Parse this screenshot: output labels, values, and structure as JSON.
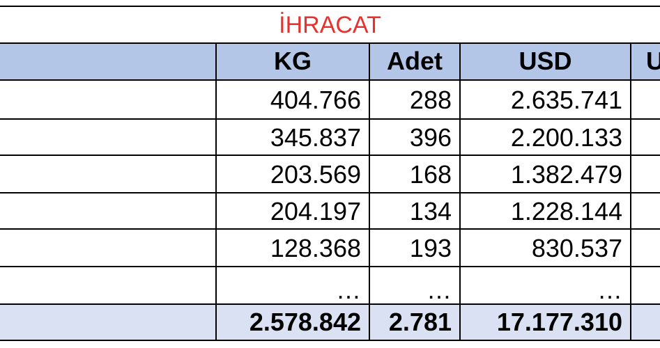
{
  "title": "İHRACAT",
  "headers": {
    "kg": "KG",
    "adet": "Adet",
    "usd": "USD",
    "partial": "U"
  },
  "rows": [
    {
      "kg": "404.766",
      "adet": "288",
      "usd": "2.635.741"
    },
    {
      "kg": "345.837",
      "adet": "396",
      "usd": "2.200.133"
    },
    {
      "kg": "203.569",
      "adet": "168",
      "usd": "1.382.479"
    },
    {
      "kg": "204.197",
      "adet": "134",
      "usd": "1.228.144"
    },
    {
      "kg": "128.368",
      "adet": "193",
      "usd": "830.537"
    },
    {
      "kg": "…",
      "adet": "…",
      "usd": "…"
    }
  ],
  "total": {
    "kg": "2.578.842",
    "adet": "2.781",
    "usd": "17.177.310"
  },
  "colors": {
    "title": "#e8312f",
    "header_fill": "#b4c6e7",
    "total_fill": "#d9e1f2",
    "grid": "#000000"
  }
}
